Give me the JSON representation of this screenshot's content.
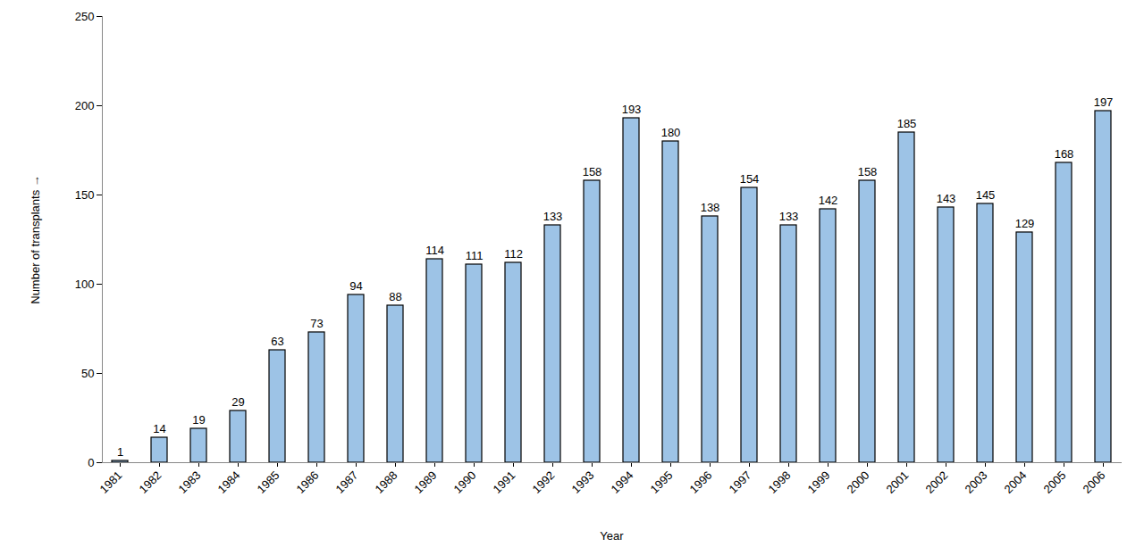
{
  "chart_data": {
    "type": "bar",
    "xlabel": "Year",
    "ylabel": "Number of transplants",
    "categories": [
      "1981",
      "1982",
      "1983",
      "1984",
      "1985",
      "1986",
      "1987",
      "1988",
      "1989",
      "1990",
      "1991",
      "1992",
      "1993",
      "1994",
      "1995",
      "1996",
      "1997",
      "1998",
      "1999",
      "2000",
      "2001",
      "2002",
      "2003",
      "2004",
      "2005",
      "2006"
    ],
    "values": [
      1,
      14,
      19,
      29,
      63,
      73,
      94,
      88,
      114,
      111,
      112,
      133,
      158,
      193,
      180,
      138,
      154,
      133,
      142,
      158,
      185,
      143,
      145,
      129,
      168,
      197
    ],
    "color": "#9dc3e6",
    "ylim": [
      0,
      250
    ],
    "yticks": [
      0,
      50,
      100,
      150,
      200,
      250
    ],
    "grid": false,
    "data_labels": true
  }
}
